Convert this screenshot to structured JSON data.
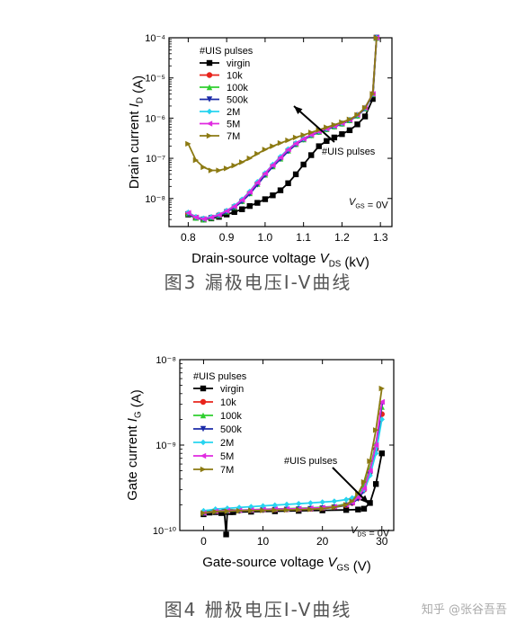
{
  "captions": {
    "fig3": "图3 漏极电压I-V曲线",
    "fig4": "图4 栅极电压I-V曲线"
  },
  "watermark": "知乎 @张谷吾吾",
  "chart_data": [
    {
      "type": "line",
      "yscale": "log",
      "xlabel": "Drain-source voltage  V_DS (kV)",
      "ylabel": "Drain current  I_D (A)",
      "xlim": [
        0.75,
        1.33
      ],
      "ylim": [
        2e-09,
        0.0001
      ],
      "xticks": [
        "0.8",
        "0.9",
        "1.0",
        "1.1",
        "1.2",
        "1.3"
      ],
      "yticks": [
        "10⁻⁸",
        "10⁻⁷",
        "10⁻⁶",
        "10⁻⁵",
        "10⁻⁴"
      ],
      "legend_title": "#UIS pulses",
      "annotation": "#UIS pulses",
      "condition": "V_GS = 0V",
      "grid": false,
      "legend_position": "top-left",
      "series": [
        {
          "name": "virgin",
          "color": "#000000",
          "x": [
            0.8,
            0.82,
            0.84,
            0.86,
            0.88,
            0.9,
            0.92,
            0.94,
            0.96,
            0.98,
            1.0,
            1.02,
            1.04,
            1.06,
            1.08,
            1.1,
            1.12,
            1.14,
            1.16,
            1.18,
            1.2,
            1.22,
            1.24,
            1.26,
            1.28,
            1.29
          ],
          "y": [
            4e-09,
            3.3e-09,
            3e-09,
            3.2e-09,
            3.5e-09,
            4e-09,
            4.6e-09,
            5.4e-09,
            6.5e-09,
            7.8e-09,
            9.6e-09,
            1.2e-08,
            1.6e-08,
            2.4e-08,
            4e-08,
            7e-08,
            1.2e-07,
            2e-07,
            2.7e-07,
            3.3e-07,
            4e-07,
            5e-07,
            7e-07,
            1.1e-06,
            3e-06,
            0.0001
          ]
        },
        {
          "name": "10k",
          "color": "#e8241c",
          "x": [
            0.8,
            0.82,
            0.84,
            0.86,
            0.88,
            0.9,
            0.92,
            0.94,
            0.96,
            0.98,
            1.0,
            1.02,
            1.04,
            1.06,
            1.08,
            1.1,
            1.12,
            1.14,
            1.16,
            1.18,
            1.2,
            1.22,
            1.24,
            1.26,
            1.28,
            1.29
          ],
          "y": [
            4.3e-09,
            3.4e-09,
            3.1e-09,
            3.4e-09,
            3.9e-09,
            4.8e-09,
            6.3e-09,
            9e-09,
            1.4e-08,
            2.4e-08,
            4e-08,
            6.5e-08,
            1e-07,
            1.6e-07,
            2.3e-07,
            3e-07,
            3.8e-07,
            4.6e-07,
            5.4e-07,
            6.3e-07,
            7.4e-07,
            9e-07,
            1.2e-06,
            1.8e-06,
            4e-06,
            0.0001
          ]
        },
        {
          "name": "100k",
          "color": "#2fcf2f",
          "x": [
            0.8,
            0.82,
            0.84,
            0.86,
            0.88,
            0.9,
            0.92,
            0.94,
            0.96,
            0.98,
            1.0,
            1.02,
            1.04,
            1.06,
            1.08,
            1.1,
            1.12,
            1.14,
            1.16,
            1.18,
            1.2,
            1.22,
            1.24,
            1.26,
            1.28,
            1.29
          ],
          "y": [
            4.2e-09,
            3.3e-09,
            3e-09,
            3.3e-09,
            3.8e-09,
            4.7e-09,
            6.1e-09,
            8.6e-09,
            1.35e-08,
            2.3e-08,
            3.9e-08,
            6.3e-08,
            9.8e-08,
            1.55e-07,
            2.25e-07,
            2.95e-07,
            3.75e-07,
            4.55e-07,
            5.3e-07,
            6.2e-07,
            7.3e-07,
            8.8e-07,
            1.15e-06,
            1.75e-06,
            3.9e-06,
            0.0001
          ]
        },
        {
          "name": "500k",
          "color": "#1c2ca8",
          "x": [
            0.8,
            0.82,
            0.84,
            0.86,
            0.88,
            0.9,
            0.92,
            0.94,
            0.96,
            0.98,
            1.0,
            1.02,
            1.04,
            1.06,
            1.08,
            1.1,
            1.12,
            1.14,
            1.16,
            1.18,
            1.2,
            1.22,
            1.24,
            1.26,
            1.28,
            1.29
          ],
          "y": [
            4.1e-09,
            3.3e-09,
            3e-09,
            3.3e-09,
            3.7e-09,
            4.6e-09,
            6e-09,
            8.4e-09,
            1.3e-08,
            2.2e-08,
            3.8e-08,
            6.2e-08,
            9.6e-08,
            1.5e-07,
            2.2e-07,
            2.9e-07,
            3.7e-07,
            4.5e-07,
            5.2e-07,
            6.1e-07,
            7.2e-07,
            8.7e-07,
            1.15e-06,
            1.7e-06,
            3.8e-06,
            0.0001
          ]
        },
        {
          "name": "2M",
          "color": "#27d4f0",
          "x": [
            0.8,
            0.82,
            0.84,
            0.86,
            0.88,
            0.9,
            0.92,
            0.94,
            0.96,
            0.98,
            1.0,
            1.02,
            1.04,
            1.06,
            1.08,
            1.1,
            1.12,
            1.14,
            1.16,
            1.18,
            1.2,
            1.22,
            1.24,
            1.26,
            1.28,
            1.29
          ],
          "y": [
            4.5e-09,
            3.5e-09,
            3.2e-09,
            3.5e-09,
            4e-09,
            5e-09,
            6.6e-09,
            9.5e-09,
            1.5e-08,
            2.6e-08,
            4.3e-08,
            7e-08,
            1.1e-07,
            1.7e-07,
            2.4e-07,
            3.1e-07,
            3.9e-07,
            4.7e-07,
            5.5e-07,
            6.4e-07,
            7.5e-07,
            9.1e-07,
            1.2e-06,
            1.8e-06,
            4e-06,
            0.0001
          ]
        },
        {
          "name": "5M",
          "color": "#e02ae0",
          "x": [
            0.8,
            0.82,
            0.84,
            0.86,
            0.88,
            0.9,
            0.92,
            0.94,
            0.96,
            0.98,
            1.0,
            1.02,
            1.04,
            1.06,
            1.08,
            1.1,
            1.12,
            1.14,
            1.16,
            1.18,
            1.2,
            1.22,
            1.24,
            1.26,
            1.28,
            1.29
          ],
          "y": [
            4.4e-09,
            3.4e-09,
            3.1e-09,
            3.4e-09,
            3.9e-09,
            4.9e-09,
            6.4e-09,
            9.2e-09,
            1.45e-08,
            2.5e-08,
            4.2e-08,
            6.8e-08,
            1.05e-07,
            1.65e-07,
            2.35e-07,
            3.05e-07,
            3.85e-07,
            4.65e-07,
            5.45e-07,
            6.35e-07,
            7.45e-07,
            9e-07,
            1.2e-06,
            1.8e-06,
            4e-06,
            0.0001
          ]
        },
        {
          "name": "7M",
          "color": "#8c7a12",
          "x": [
            0.8,
            0.82,
            0.84,
            0.86,
            0.88,
            0.9,
            0.92,
            0.94,
            0.96,
            0.98,
            1.0,
            1.02,
            1.04,
            1.06,
            1.08,
            1.1,
            1.12,
            1.14,
            1.16,
            1.18,
            1.2,
            1.22,
            1.24,
            1.26,
            1.28,
            1.29
          ],
          "y": [
            2.3e-07,
            9e-08,
            6e-08,
            5e-08,
            5e-08,
            5.6e-08,
            6.6e-08,
            8e-08,
            1e-07,
            1.3e-07,
            1.65e-07,
            2e-07,
            2.4e-07,
            2.8e-07,
            3.3e-07,
            3.8e-07,
            4.4e-07,
            5.1e-07,
            5.9e-07,
            6.8e-07,
            7.9e-07,
            9.3e-07,
            1.2e-06,
            1.8e-06,
            4e-06,
            0.0001
          ]
        }
      ]
    },
    {
      "type": "line",
      "yscale": "log",
      "xlabel": "Gate-source voltage  V_GS (V)",
      "ylabel": "Gate current  I_G (A)",
      "xlim": [
        -4,
        32
      ],
      "ylim": [
        1e-10,
        1e-08
      ],
      "xticks": [
        "0",
        "10",
        "20",
        "30"
      ],
      "yticks": [
        "10⁻¹⁰",
        "10⁻⁹",
        "10⁻⁸"
      ],
      "legend_title": "#UIS pulses",
      "annotation": "#UIS pulses",
      "condition": "V_DS = 0V",
      "grid": false,
      "legend_position": "top-left",
      "series": [
        {
          "name": "virgin",
          "color": "#000000",
          "x": [
            0,
            1,
            2,
            3,
            3.5,
            3.8,
            4,
            4.5,
            5,
            8,
            12,
            16,
            20,
            24,
            26,
            27,
            28,
            29,
            30
          ],
          "y": [
            1.55e-10,
            1.62e-10,
            1.64e-10,
            1.6e-10,
            1.65e-10,
            9e-11,
            1.65e-10,
            1.64e-10,
            1.64e-10,
            1.66e-10,
            1.68e-10,
            1.7e-10,
            1.72e-10,
            1.74e-10,
            1.76e-10,
            1.8e-10,
            2.1e-10,
            3.5e-10,
            8e-10
          ]
        },
        {
          "name": "10k",
          "color": "#e8241c",
          "x": [
            0,
            2,
            4,
            6,
            8,
            10,
            12,
            14,
            16,
            18,
            20,
            22,
            24,
            25,
            26,
            27,
            28,
            29,
            30
          ],
          "y": [
            1.6e-10,
            1.68e-10,
            1.7e-10,
            1.7e-10,
            1.72e-10,
            1.74e-10,
            1.76e-10,
            1.77e-10,
            1.78e-10,
            1.8e-10,
            1.83e-10,
            1.88e-10,
            1.98e-10,
            2.1e-10,
            2.4e-10,
            3e-10,
            4.8e-10,
            9e-10,
            2.3e-09
          ]
        },
        {
          "name": "100k",
          "color": "#2fcf2f",
          "x": [
            0,
            2,
            4,
            6,
            8,
            10,
            12,
            14,
            16,
            18,
            20,
            22,
            24,
            25,
            26,
            27,
            28,
            29,
            30
          ],
          "y": [
            1.62e-10,
            1.7e-10,
            1.72e-10,
            1.73e-10,
            1.75e-10,
            1.77e-10,
            1.79e-10,
            1.8e-10,
            1.82e-10,
            1.84e-10,
            1.87e-10,
            1.92e-10,
            2.05e-10,
            2.2e-10,
            2.55e-10,
            3.3e-10,
            5.3e-10,
            1.05e-09,
            2.8e-09
          ]
        },
        {
          "name": "500k",
          "color": "#1c2ca8",
          "x": [
            0,
            2,
            4,
            6,
            8,
            10,
            12,
            14,
            16,
            18,
            20,
            22,
            24,
            25,
            26,
            27,
            28,
            29,
            30
          ],
          "y": [
            1.58e-10,
            1.66e-10,
            1.68e-10,
            1.69e-10,
            1.71e-10,
            1.73e-10,
            1.75e-10,
            1.76e-10,
            1.77e-10,
            1.79e-10,
            1.82e-10,
            1.87e-10,
            1.97e-10,
            2.08e-10,
            2.35e-10,
            2.9e-10,
            4.5e-10,
            8.5e-10,
            3e-09
          ]
        },
        {
          "name": "2M",
          "color": "#27d4f0",
          "x": [
            0,
            2,
            4,
            6,
            8,
            10,
            12,
            14,
            16,
            18,
            20,
            22,
            24,
            25,
            26,
            27,
            28,
            29,
            30
          ],
          "y": [
            1.7e-10,
            1.78e-10,
            1.82e-10,
            1.86e-10,
            1.9e-10,
            1.94e-10,
            1.98e-10,
            2.02e-10,
            2.06e-10,
            2.1e-10,
            2.15e-10,
            2.2e-10,
            2.3e-10,
            2.4e-10,
            2.6e-10,
            3e-10,
            4.4e-10,
            8e-10,
            2e-09
          ]
        },
        {
          "name": "5M",
          "color": "#e02ae0",
          "x": [
            0,
            2,
            4,
            6,
            8,
            10,
            12,
            14,
            16,
            18,
            20,
            22,
            24,
            25,
            26,
            27,
            28,
            29,
            30
          ],
          "y": [
            1.6e-10,
            1.68e-10,
            1.71e-10,
            1.72e-10,
            1.74e-10,
            1.76e-10,
            1.78e-10,
            1.79e-10,
            1.8e-10,
            1.82e-10,
            1.85e-10,
            1.9e-10,
            2e-10,
            2.12e-10,
            2.45e-10,
            3.1e-10,
            5e-10,
            1e-09,
            3.2e-09
          ]
        },
        {
          "name": "7M",
          "color": "#8c7a12",
          "x": [
            0,
            2,
            4,
            6,
            8,
            10,
            12,
            14,
            16,
            18,
            20,
            22,
            24,
            25,
            26,
            27,
            28,
            29,
            30
          ],
          "y": [
            1.6e-10,
            1.66e-10,
            1.68e-10,
            1.7e-10,
            1.71e-10,
            1.72e-10,
            1.73e-10,
            1.74e-10,
            1.75e-10,
            1.77e-10,
            1.8e-10,
            1.87e-10,
            2e-10,
            2.2e-10,
            2.7e-10,
            3.7e-10,
            6.5e-10,
            1.5e-09,
            4.6e-09
          ]
        }
      ]
    }
  ]
}
